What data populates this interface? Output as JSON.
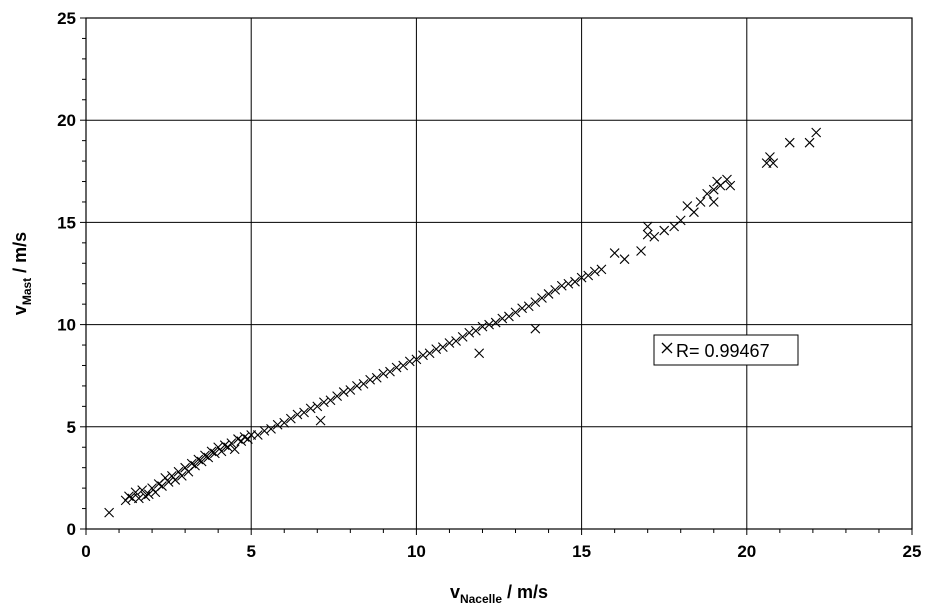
{
  "chart_data": {
    "type": "scatter",
    "xlabel": {
      "main": "v",
      "sub": "Nacelle",
      "unit": " / m/s"
    },
    "ylabel": {
      "main": "v",
      "sub": "Mast",
      "unit": " / m/s"
    },
    "xlim": [
      0,
      25
    ],
    "ylim": [
      0,
      25
    ],
    "xticks": [
      "0",
      "5",
      "10",
      "15",
      "20",
      "25"
    ],
    "yticks": [
      "0",
      "5",
      "10",
      "15",
      "20",
      "25"
    ],
    "grid": true,
    "legend": {
      "label": "R= 0.99467",
      "placement": "right-middle"
    },
    "marker": "x",
    "color": "#000000",
    "series": [
      {
        "points": [
          [
            0.7,
            0.8
          ],
          [
            1.2,
            1.4
          ],
          [
            1.3,
            1.6
          ],
          [
            1.4,
            1.5
          ],
          [
            1.5,
            1.8
          ],
          [
            1.6,
            1.5
          ],
          [
            1.7,
            1.9
          ],
          [
            1.8,
            1.6
          ],
          [
            1.9,
            1.7
          ],
          [
            2.0,
            2.0
          ],
          [
            2.1,
            1.8
          ],
          [
            2.2,
            2.2
          ],
          [
            2.3,
            2.1
          ],
          [
            2.4,
            2.5
          ],
          [
            2.5,
            2.3
          ],
          [
            2.6,
            2.6
          ],
          [
            2.7,
            2.4
          ],
          [
            2.8,
            2.8
          ],
          [
            2.9,
            2.6
          ],
          [
            3.0,
            3.0
          ],
          [
            3.1,
            2.8
          ],
          [
            3.2,
            3.2
          ],
          [
            3.3,
            3.1
          ],
          [
            3.4,
            3.4
          ],
          [
            3.5,
            3.3
          ],
          [
            3.6,
            3.6
          ],
          [
            3.7,
            3.5
          ],
          [
            3.8,
            3.8
          ],
          [
            3.9,
            3.7
          ],
          [
            4.0,
            4.0
          ],
          [
            4.1,
            3.8
          ],
          [
            4.2,
            4.1
          ],
          [
            4.3,
            4.0
          ],
          [
            4.4,
            4.2
          ],
          [
            4.5,
            3.9
          ],
          [
            4.6,
            4.4
          ],
          [
            4.7,
            4.3
          ],
          [
            4.8,
            4.5
          ],
          [
            4.9,
            4.4
          ],
          [
            5.0,
            4.6
          ],
          [
            5.2,
            4.6
          ],
          [
            5.4,
            4.8
          ],
          [
            5.6,
            4.9
          ],
          [
            5.8,
            5.1
          ],
          [
            6.0,
            5.2
          ],
          [
            6.2,
            5.4
          ],
          [
            6.4,
            5.6
          ],
          [
            6.6,
            5.7
          ],
          [
            6.8,
            5.9
          ],
          [
            7.0,
            6.0
          ],
          [
            7.2,
            6.2
          ],
          [
            7.1,
            5.3
          ],
          [
            7.4,
            6.3
          ],
          [
            7.6,
            6.5
          ],
          [
            7.8,
            6.7
          ],
          [
            8.0,
            6.8
          ],
          [
            8.2,
            7.0
          ],
          [
            8.4,
            7.1
          ],
          [
            8.6,
            7.3
          ],
          [
            8.8,
            7.4
          ],
          [
            9.0,
            7.6
          ],
          [
            9.2,
            7.7
          ],
          [
            9.4,
            7.9
          ],
          [
            9.6,
            8.0
          ],
          [
            9.8,
            8.2
          ],
          [
            10.0,
            8.3
          ],
          [
            10.2,
            8.5
          ],
          [
            10.4,
            8.6
          ],
          [
            10.6,
            8.8
          ],
          [
            10.8,
            8.9
          ],
          [
            11.0,
            9.1
          ],
          [
            11.2,
            9.2
          ],
          [
            11.4,
            9.4
          ],
          [
            11.6,
            9.6
          ],
          [
            11.8,
            9.7
          ],
          [
            12.0,
            9.9
          ],
          [
            11.9,
            8.6
          ],
          [
            12.2,
            10.0
          ],
          [
            12.4,
            10.1
          ],
          [
            12.6,
            10.3
          ],
          [
            12.8,
            10.4
          ],
          [
            13.0,
            10.6
          ],
          [
            13.2,
            10.8
          ],
          [
            13.4,
            10.9
          ],
          [
            13.6,
            11.1
          ],
          [
            13.6,
            9.8
          ],
          [
            13.8,
            11.3
          ],
          [
            14.0,
            11.5
          ],
          [
            14.2,
            11.7
          ],
          [
            14.4,
            11.9
          ],
          [
            14.6,
            12.0
          ],
          [
            14.8,
            12.1
          ],
          [
            15.0,
            12.3
          ],
          [
            15.2,
            12.4
          ],
          [
            15.4,
            12.6
          ],
          [
            15.6,
            12.7
          ],
          [
            16.0,
            13.5
          ],
          [
            16.3,
            13.2
          ],
          [
            16.8,
            13.6
          ],
          [
            17.0,
            14.4
          ],
          [
            17.0,
            14.8
          ],
          [
            17.2,
            14.3
          ],
          [
            17.5,
            14.6
          ],
          [
            17.8,
            14.8
          ],
          [
            18.0,
            15.1
          ],
          [
            18.2,
            15.8
          ],
          [
            18.4,
            15.5
          ],
          [
            18.6,
            16.0
          ],
          [
            18.8,
            16.4
          ],
          [
            19.0,
            16.6
          ],
          [
            19.1,
            17.0
          ],
          [
            19.2,
            16.8
          ],
          [
            19.4,
            17.1
          ],
          [
            19.5,
            16.8
          ],
          [
            19.0,
            16.0
          ],
          [
            20.6,
            17.9
          ],
          [
            20.7,
            18.2
          ],
          [
            20.8,
            17.9
          ],
          [
            21.3,
            18.9
          ],
          [
            21.9,
            18.9
          ],
          [
            22.1,
            19.4
          ]
        ]
      }
    ]
  }
}
